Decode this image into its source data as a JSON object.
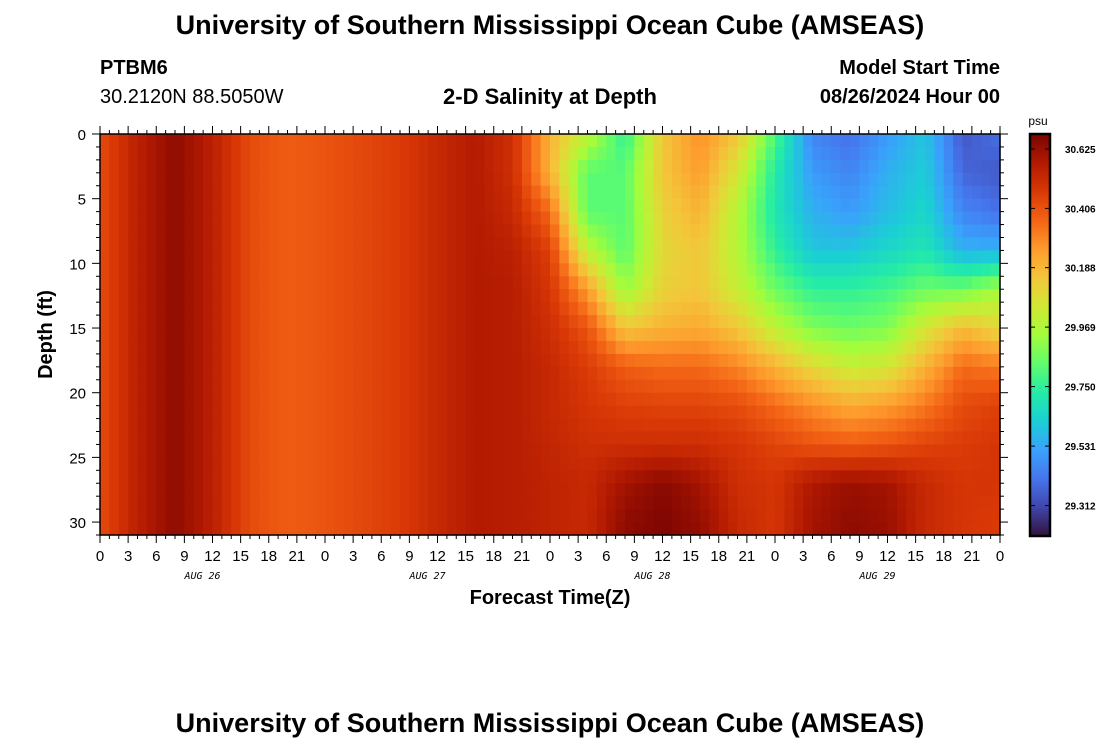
{
  "header": {
    "title": "University of Southern Mississippi Ocean Cube (AMSEAS)",
    "station_id": "PTBM6",
    "station_coords": "30.2120N  88.5050W",
    "subtitle": "2-D Salinity at Depth",
    "model_start_label": "Model Start Time",
    "model_start_value": "08/26/2024 Hour 00"
  },
  "footer": {
    "title": "University of Southern Mississippi Ocean Cube (AMSEAS)"
  },
  "chart_data": {
    "type": "heatmap",
    "xlabel": "Forecast Time(Z)",
    "ylabel": "Depth (ft)",
    "x_range_hours": [
      0,
      96
    ],
    "ylim": [
      0,
      31
    ],
    "y_inverted": true,
    "x_tick_labels": [
      "0",
      "3",
      "6",
      "9",
      "12",
      "15",
      "18",
      "21",
      "0",
      "3",
      "6",
      "9",
      "12",
      "15",
      "18",
      "21",
      "0",
      "3",
      "6",
      "9",
      "12",
      "15",
      "18",
      "21",
      "0",
      "3",
      "6",
      "9",
      "12",
      "15",
      "18",
      "21",
      "0"
    ],
    "y_ticks": [
      0,
      5,
      10,
      15,
      20,
      25,
      30
    ],
    "y_tick_labels": [
      "0",
      "5",
      "10",
      "15",
      "20",
      "25",
      "30"
    ],
    "day_labels": [
      "AUG 26",
      "AUG 27",
      "AUG 28",
      "AUG 29"
    ],
    "colorbar": {
      "unit": "psu",
      "min": 29.2,
      "max": 30.68,
      "tick_values": [
        30.625,
        30.406,
        30.188,
        29.969,
        29.75,
        29.531,
        29.312
      ],
      "tick_labels": [
        "30.625",
        "30.406",
        "30.188",
        "29.969",
        "29.750",
        "29.531",
        "29.312"
      ]
    },
    "colormap": [
      "#30123b",
      "#4145ab",
      "#4675ed",
      "#39a2fc",
      "#1bcfd4",
      "#24eca6",
      "#61fc6c",
      "#a4fc3b",
      "#d1e834",
      "#f3c63a",
      "#fe9b2d",
      "#f36315",
      "#d93806",
      "#b11901",
      "#7a0402"
    ],
    "grid": false,
    "legend": "colorbar-right",
    "salinity_grid": {
      "x_hours": [
        0,
        4,
        8,
        12,
        16,
        20,
        24,
        28,
        32,
        36,
        40,
        44,
        48,
        52,
        56,
        60,
        64,
        68,
        72,
        76,
        80,
        84,
        88,
        92,
        96
      ],
      "depth_ft": [
        0,
        3,
        6,
        9,
        12,
        15,
        18,
        21,
        24,
        27,
        30,
        31
      ],
      "values": [
        [
          30.42,
          30.55,
          30.64,
          30.55,
          30.42,
          30.38,
          30.4,
          30.43,
          30.46,
          30.52,
          30.57,
          30.5,
          30.2,
          30.0,
          29.75,
          30.15,
          30.28,
          30.15,
          29.8,
          29.45,
          29.4,
          29.5,
          29.6,
          29.35,
          29.4
        ],
        [
          30.42,
          30.55,
          30.64,
          30.55,
          30.42,
          30.38,
          30.4,
          30.43,
          30.46,
          30.52,
          30.57,
          30.5,
          30.2,
          29.82,
          29.82,
          30.15,
          30.25,
          30.05,
          29.72,
          29.5,
          29.45,
          29.55,
          29.62,
          29.38,
          29.35
        ],
        [
          30.42,
          30.55,
          30.64,
          30.55,
          30.42,
          30.38,
          30.4,
          30.43,
          30.46,
          30.52,
          30.57,
          30.52,
          30.35,
          29.82,
          29.82,
          30.12,
          30.2,
          29.98,
          29.7,
          29.55,
          29.5,
          29.58,
          29.65,
          29.45,
          29.4
        ],
        [
          30.42,
          30.55,
          30.64,
          30.55,
          30.42,
          30.38,
          30.4,
          30.43,
          30.46,
          30.52,
          30.57,
          30.55,
          30.45,
          30.0,
          29.82,
          30.1,
          30.15,
          29.98,
          29.75,
          29.6,
          29.6,
          29.65,
          29.7,
          29.55,
          29.55
        ],
        [
          30.42,
          30.55,
          30.64,
          30.55,
          30.42,
          30.38,
          30.4,
          30.43,
          30.46,
          30.52,
          30.57,
          30.56,
          30.48,
          30.25,
          29.92,
          30.12,
          30.15,
          30.02,
          29.85,
          29.75,
          29.75,
          29.78,
          29.85,
          29.85,
          29.95
        ],
        [
          30.42,
          30.55,
          30.64,
          30.55,
          30.42,
          30.38,
          30.4,
          30.43,
          30.46,
          30.52,
          30.57,
          30.56,
          30.5,
          30.4,
          30.15,
          30.2,
          30.22,
          30.15,
          30.0,
          29.88,
          29.85,
          29.88,
          30.05,
          30.18,
          30.1
        ],
        [
          30.42,
          30.55,
          30.64,
          30.55,
          30.42,
          30.38,
          30.4,
          30.43,
          30.46,
          30.52,
          30.57,
          30.56,
          30.52,
          30.46,
          30.38,
          30.35,
          30.35,
          30.3,
          30.2,
          30.1,
          30.02,
          30.05,
          30.2,
          30.35,
          30.32
        ],
        [
          30.42,
          30.55,
          30.64,
          30.55,
          30.42,
          30.38,
          30.4,
          30.43,
          30.46,
          30.52,
          30.57,
          30.56,
          30.52,
          30.48,
          30.45,
          30.44,
          30.44,
          30.42,
          30.35,
          30.28,
          30.22,
          30.25,
          30.32,
          30.42,
          30.45
        ],
        [
          30.42,
          30.55,
          30.64,
          30.55,
          30.42,
          30.38,
          30.4,
          30.43,
          30.46,
          30.52,
          30.57,
          30.56,
          30.53,
          30.5,
          30.5,
          30.5,
          30.5,
          30.48,
          30.44,
          30.4,
          30.38,
          30.4,
          30.44,
          30.46,
          30.48
        ],
        [
          30.42,
          30.55,
          30.64,
          30.55,
          30.42,
          30.38,
          30.4,
          30.43,
          30.46,
          30.52,
          30.57,
          30.56,
          30.54,
          30.52,
          30.6,
          30.65,
          30.6,
          30.5,
          30.48,
          30.58,
          30.62,
          30.6,
          30.52,
          30.48,
          30.48
        ],
        [
          30.42,
          30.55,
          30.64,
          30.55,
          30.42,
          30.38,
          30.4,
          30.43,
          30.46,
          30.52,
          30.57,
          30.56,
          30.54,
          30.52,
          30.64,
          30.67,
          30.63,
          30.52,
          30.48,
          30.6,
          30.64,
          30.62,
          30.52,
          30.48,
          30.46
        ],
        [
          30.42,
          30.55,
          30.64,
          30.55,
          30.42,
          30.38,
          30.4,
          30.43,
          30.46,
          30.52,
          30.57,
          30.56,
          30.54,
          30.52,
          30.64,
          30.67,
          30.63,
          30.52,
          30.48,
          30.6,
          30.64,
          30.62,
          30.52,
          30.48,
          30.46
        ]
      ]
    }
  }
}
